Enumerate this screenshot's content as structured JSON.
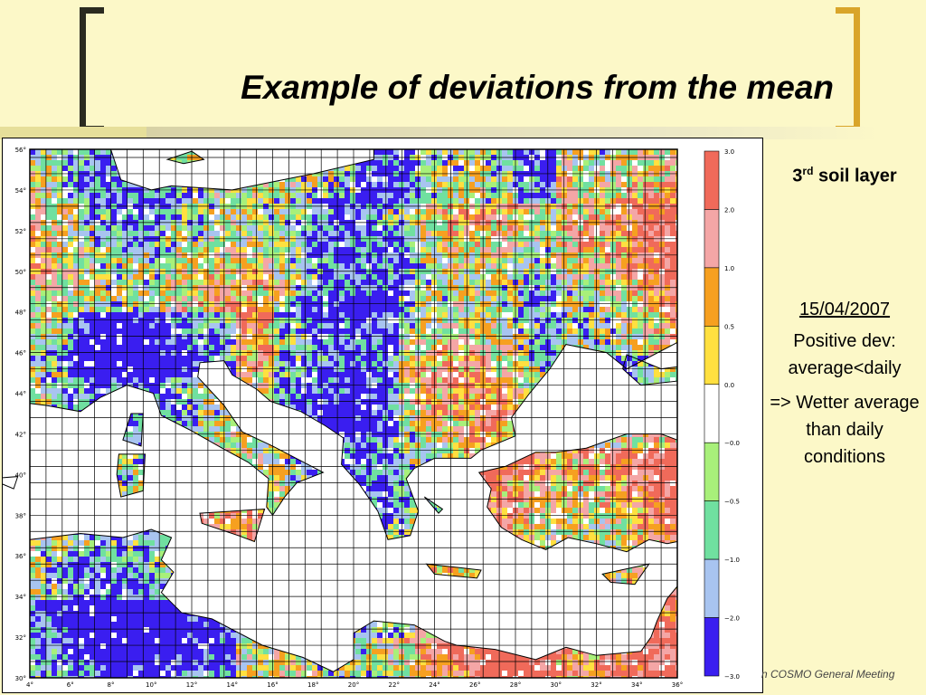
{
  "slide": {
    "title": "Example of deviations from the mean",
    "footer": "n COSMO General Meeting"
  },
  "panel": {
    "layer_ordinal": "3",
    "layer_suffix": "rd",
    "layer_text": "soil layer",
    "date": "15/04/2007",
    "line1": "Positive dev: average<daily",
    "line2": "=> Wetter average than daily conditions"
  },
  "map": {
    "lat_labels": [
      "56°",
      "54°",
      "52°",
      "50°",
      "48°",
      "46°",
      "44°",
      "42°",
      "40°",
      "38°",
      "36°",
      "34°",
      "32°",
      "30°"
    ],
    "lon_labels": [
      "4°",
      "6°",
      "8°",
      "10°",
      "12°",
      "14°",
      "16°",
      "18°",
      "20°",
      "22°",
      "24°",
      "26°",
      "28°",
      "30°",
      "32°",
      "34°",
      "36°"
    ],
    "colors": {
      "sea": "#ffffff",
      "land_base": "#7fe07f",
      "grid": "#000000"
    }
  },
  "colorbar": {
    "labels": [
      "3.0",
      "2.0",
      "1.0",
      "0.5",
      "0.0",
      "−0.0",
      "−0.5",
      "−1.0",
      "−2.0",
      "−3.0"
    ],
    "colors": [
      "#f06a5a",
      "#f4a6a6",
      "#f6a020",
      "#ffe040",
      "#ffffff",
      "#a8f07a",
      "#70e0a0",
      "#a8c4f0",
      "#3a1ef0"
    ]
  }
}
